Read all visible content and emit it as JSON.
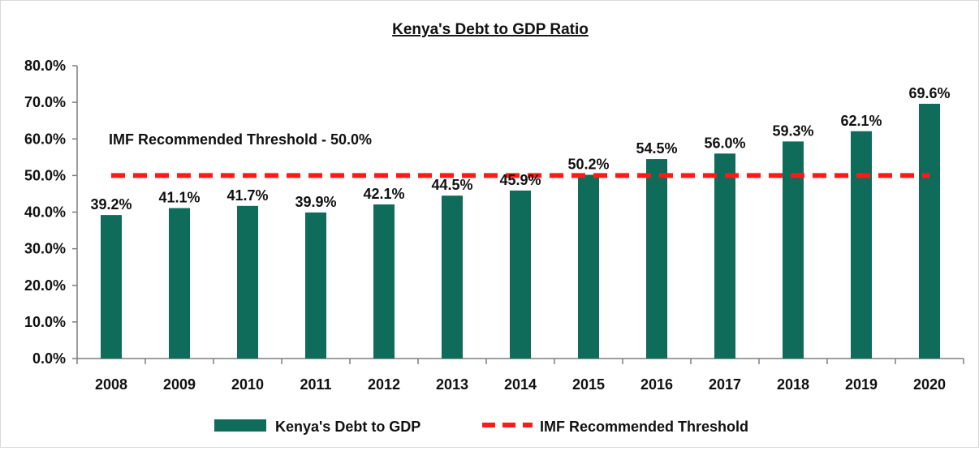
{
  "chart_data": {
    "type": "bar",
    "title": "Kenya's Debt to GDP Ratio",
    "xlabel": "",
    "ylabel": "",
    "categories": [
      "2008",
      "2009",
      "2010",
      "2011",
      "2012",
      "2013",
      "2014",
      "2015",
      "2016",
      "2017",
      "2018",
      "2019",
      "2020"
    ],
    "series": [
      {
        "name": "Kenya's Debt to GDP",
        "type": "bar",
        "values": [
          39.2,
          41.1,
          41.7,
          39.9,
          42.1,
          44.5,
          45.9,
          50.2,
          54.5,
          56.0,
          59.3,
          62.1,
          69.6
        ],
        "labels": [
          "39.2%",
          "41.1%",
          "41.7%",
          "39.9%",
          "42.1%",
          "44.5%",
          "45.9%",
          "50.2%",
          "54.5%",
          "56.0%",
          "59.3%",
          "62.1%",
          "69.6%"
        ],
        "color": "#0f6b5a"
      },
      {
        "name": "IMF Recommended Threshold",
        "type": "line",
        "style": "dashed",
        "value": 50.0,
        "color": "#ff1a1a"
      }
    ],
    "ylim": [
      0,
      80
    ],
    "yticks": [
      "0.0%",
      "10.0%",
      "20.0%",
      "30.0%",
      "40.0%",
      "50.0%",
      "60.0%",
      "70.0%",
      "80.0%"
    ],
    "ytick_values": [
      0,
      10,
      20,
      30,
      40,
      50,
      60,
      70,
      80
    ],
    "annotation": "IMF Recommended Threshold - 50.0%",
    "grid": false,
    "legend_position": "bottom"
  }
}
